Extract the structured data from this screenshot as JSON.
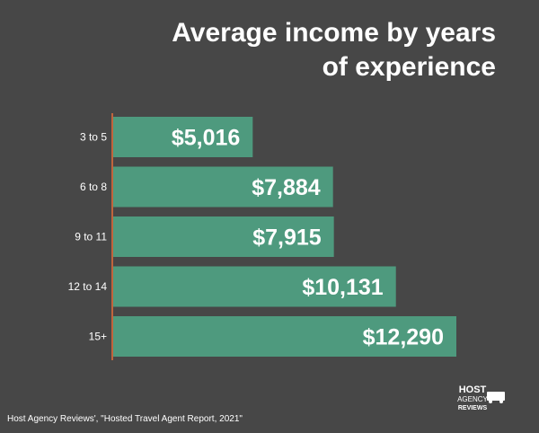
{
  "title_lines": [
    "Average income by years",
    "of experience"
  ],
  "source": "Host Agency Reviews', \"Hosted Travel Agent Report, 2021\"",
  "logo": {
    "lines": [
      "HOST",
      "AGENCY",
      "REVIEWS"
    ]
  },
  "colors": {
    "background": "#474747",
    "bar": "#4e9a7e",
    "axis": "#c0643c",
    "text": "#ffffff"
  },
  "chart_data": {
    "type": "bar",
    "orientation": "horizontal",
    "title": "Average income by years of experience",
    "categories": [
      "3 to 5",
      "6 to 8",
      "9 to 11",
      "12 to 14",
      "15+"
    ],
    "values": [
      5016,
      7884,
      7915,
      10131,
      12290
    ],
    "data_labels": [
      "$5,016",
      "$7,884",
      "$7,915",
      "$10,131",
      "$12,290"
    ],
    "xlim": [
      0,
      13000
    ],
    "grid": false,
    "legend": "none"
  }
}
